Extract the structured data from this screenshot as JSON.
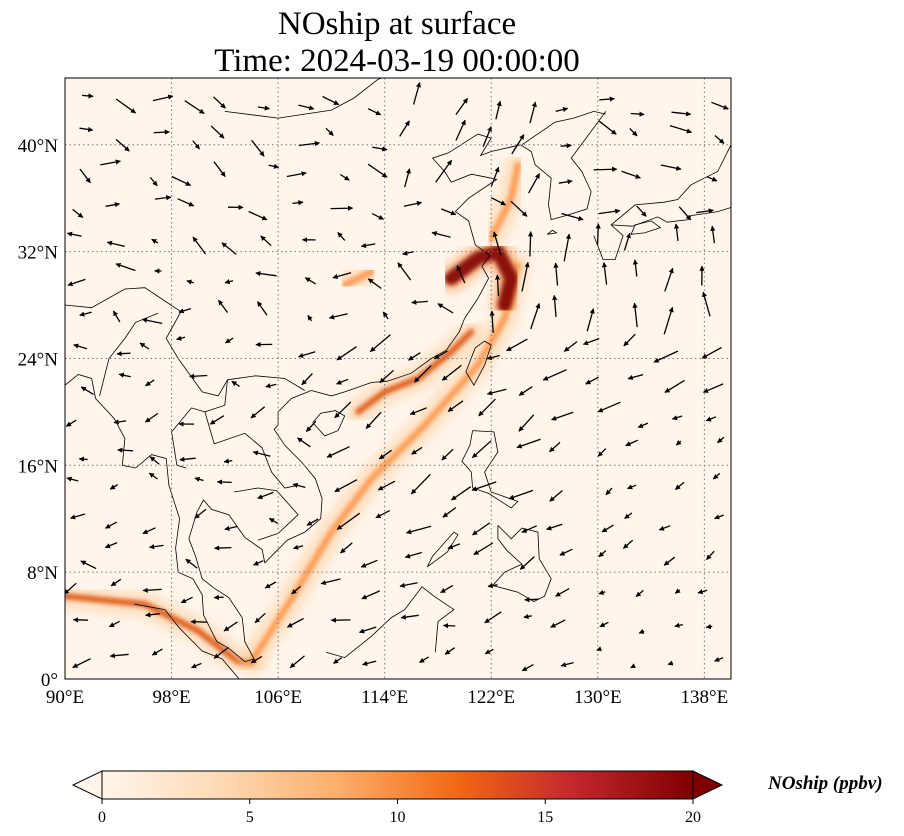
{
  "title_line1": "NOship at surface",
  "title_line2": "Time: 2024-03-19 00:00:00",
  "map": {
    "lon_range": [
      90,
      140
    ],
    "lat_range": [
      0,
      45
    ],
    "lon_ticks": [
      "90°E",
      "98°E",
      "106°E",
      "114°E",
      "122°E",
      "130°E",
      "138°E"
    ],
    "lat_ticks": [
      "0°",
      "8°N",
      "16°N",
      "24°N",
      "32°N",
      "40°N"
    ],
    "gridlines": "dotted"
  },
  "colorbar": {
    "label": "NOship (ppbv)",
    "ticks": [
      "0",
      "5",
      "10",
      "15",
      "20"
    ],
    "range": [
      0,
      20
    ],
    "colors": [
      "#fff5eb",
      "#fdd0a2",
      "#fd8d3c",
      "#d94801",
      "#8c2d04",
      "#7f0000"
    ],
    "extend": "both"
  },
  "shipping_lanes": [
    {
      "name": "",
      "points": [
        [
          90,
          6.2
        ],
        [
          96,
          5.6
        ],
        [
          100,
          3.6
        ],
        [
          103,
          1.3
        ],
        [
          104,
          1.2
        ]
      ],
      "level": 10
    },
    {
      "name": "",
      "points": [
        [
          104,
          1.3
        ],
        [
          107,
          6
        ],
        [
          110,
          11
        ],
        [
          113,
          15
        ],
        [
          117,
          19
        ],
        [
          121,
          23.5
        ],
        [
          123,
          27
        ],
        [
          124,
          31
        ]
      ],
      "level": 8
    },
    {
      "name": "",
      "points": [
        [
          119,
          30
        ],
        [
          121,
          31.5
        ],
        [
          122.5,
          32
        ],
        [
          123.5,
          30
        ],
        [
          123,
          28
        ]
      ],
      "level": 20
    },
    {
      "name": "",
      "points": [
        [
          112,
          20
        ],
        [
          114,
          21.5
        ],
        [
          116.5,
          22.5
        ],
        [
          119,
          24.5
        ],
        [
          120.5,
          26
        ]
      ],
      "level": 12
    },
    {
      "name": "",
      "points": [
        [
          122,
          33
        ],
        [
          123.5,
          36
        ],
        [
          124,
          38.5
        ]
      ],
      "level": 7
    },
    {
      "name": "",
      "points": [
        [
          111,
          29.5
        ],
        [
          113,
          30.5
        ]
      ],
      "level": 9
    }
  ]
}
